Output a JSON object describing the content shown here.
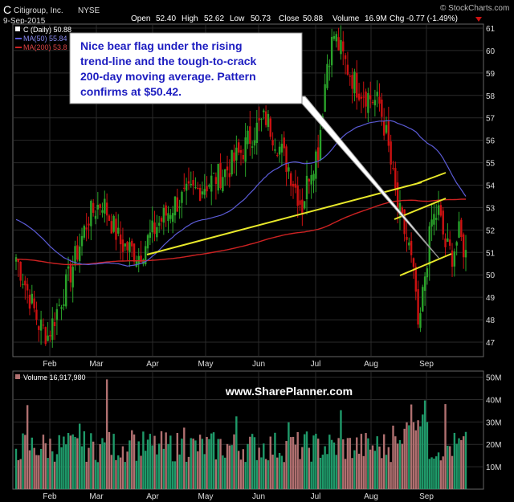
{
  "header": {
    "symbol": "C",
    "company": "Citigroup, Inc.",
    "exchange": "NYSE",
    "brand": "© StockCharts.com",
    "date": "9-Sep-2015",
    "stats": {
      "open_label": "Open",
      "open": "52.40",
      "high_label": "High",
      "high": "52.62",
      "low_label": "Low",
      "low": "50.73",
      "close_label": "Close",
      "close": "50.88",
      "volume_label": "Volume",
      "volume": "16.9M",
      "chg_label": "Chg",
      "chg": "-0.77 (-1.49%)"
    }
  },
  "annotation": {
    "text_lines": [
      "Nice bear flag under the rising",
      "trend-line and the tough-to-crack",
      "200-day moving average. Pattern",
      "confirms at $50.42."
    ]
  },
  "watermark": "www.SharePlanner.com",
  "colors": {
    "up": "#2aa32a",
    "down": "#cc1111",
    "ma50": "#5b5bd6",
    "ma200": "#cc2222",
    "trendline": "#e8e82a",
    "volume_up": "#1f9a6a",
    "volume_down": "#b07070",
    "grid": "#2a2a2a"
  },
  "chart_data": [
    {
      "type": "candlestick",
      "legend": {
        "price": "C (Daily) 50.88",
        "ma50": "MA(50) 55.84",
        "ma200": "MA(200) 53.8"
      },
      "x_tick_labels": [
        "Feb",
        "Mar",
        "Apr",
        "May",
        "Jun",
        "Jul",
        "Aug",
        "Sep"
      ],
      "y_tick_labels": [
        "47",
        "48",
        "49",
        "50",
        "51",
        "52",
        "53",
        "54",
        "55",
        "56",
        "57",
        "58",
        "59",
        "60",
        "61"
      ],
      "ylim": [
        46.5,
        61.2
      ],
      "grid": true,
      "key_points": [
        {
          "month": "Jan",
          "close": 50.8
        },
        {
          "month": "Feb",
          "close": 48.2
        },
        {
          "month": "Feb",
          "close": 51.0
        },
        {
          "month": "Mar",
          "close": 53.2
        },
        {
          "month": "Mar",
          "close": 50.8
        },
        {
          "month": "Apr",
          "close": 52.5
        },
        {
          "month": "May",
          "close": 53.3
        },
        {
          "month": "Jun",
          "close": 56.0
        },
        {
          "month": "Jul",
          "close": 53.0
        },
        {
          "month": "Jul",
          "close": 60.5
        },
        {
          "month": "Aug",
          "close": 58.0
        },
        {
          "month": "Aug",
          "close": 47.0
        },
        {
          "month": "Sep",
          "close": 53.0
        },
        {
          "month": "Sep",
          "close": 50.88
        }
      ]
    },
    {
      "type": "bar",
      "legend": "Volume 16,917,980",
      "y_tick_labels": [
        "10M",
        "20M",
        "30M",
        "40M",
        "50M"
      ],
      "ylim": [
        0,
        52
      ]
    }
  ]
}
